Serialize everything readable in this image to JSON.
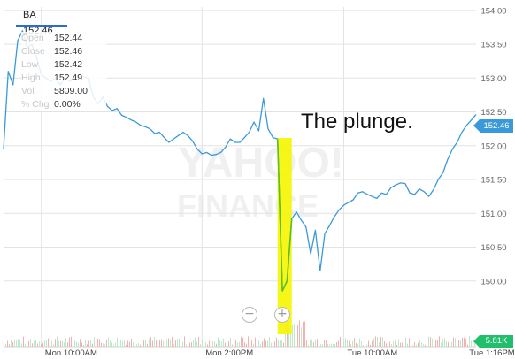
{
  "ticker": {
    "label": "BA 152.46"
  },
  "stats": [
    {
      "key": "Open",
      "value": "152.44"
    },
    {
      "key": "Close",
      "value": "152.46"
    },
    {
      "key": "Low",
      "value": "152.42"
    },
    {
      "key": "High",
      "value": "152.49"
    },
    {
      "key": "Vol",
      "value": "5809.00"
    },
    {
      "key": "% Chg",
      "value": "0.00%"
    }
  ],
  "price_tag": "152.46",
  "volume_tag": "5.81K",
  "annotation": "The plunge.",
  "watermark": {
    "line1": "YAHOO!",
    "line2": "FINANCE"
  },
  "zoom": {
    "out_icon": "−",
    "in_icon": "+"
  },
  "colors": {
    "line": "#3a9ad9",
    "highlight": "#f5f500",
    "highlight_line": "#5cbf2a",
    "grid": "#e3e3e3",
    "volume_red": "#f3b1b1",
    "volume_green": "#bfe8c9",
    "price_tag": "#3a9ad9",
    "volume_tag": "#1fbf6b"
  },
  "chart_data": {
    "type": "line",
    "title": "BA",
    "ylim": [
      149.5,
      154.05
    ],
    "yticks": [
      "154.00",
      "153.50",
      "153.00",
      "152.50",
      "152.00",
      "151.50",
      "151.00",
      "150.50",
      "150.00"
    ],
    "xticks": [
      "Mon 10:00AM",
      "Mon 2:00PM",
      "Tue 10:00AM",
      "Tue 1:16PM"
    ],
    "x_index_range": [
      0,
      100
    ],
    "xtick_positions": [
      8,
      42,
      72,
      100
    ],
    "x": [
      0,
      1,
      2,
      3,
      4,
      5,
      6,
      7,
      8,
      9,
      10,
      11,
      12,
      13,
      14,
      15,
      16,
      17,
      18,
      19,
      20,
      21,
      22,
      23,
      24,
      25,
      26,
      27,
      28,
      29,
      30,
      31,
      32,
      33,
      34,
      35,
      36,
      37,
      38,
      39,
      40,
      41,
      42,
      43,
      44,
      45,
      46,
      47,
      48,
      49,
      50,
      51,
      52,
      53,
      54,
      55,
      56,
      57,
      58,
      59,
      60,
      61,
      62,
      63,
      64,
      65,
      66,
      67,
      68,
      69,
      70,
      71,
      72,
      73,
      74,
      75,
      76,
      77,
      78,
      79,
      80,
      81,
      82,
      83,
      84,
      85,
      86,
      87,
      88,
      89,
      90,
      91,
      92,
      93,
      94,
      95,
      96,
      97,
      98,
      99,
      100
    ],
    "y": [
      151.95,
      153.1,
      152.9,
      153.55,
      153.7,
      153.45,
      153.5,
      153.3,
      153.05,
      153.0,
      152.95,
      153.0,
      152.9,
      153.0,
      152.95,
      153.0,
      153.05,
      153.02,
      153.0,
      152.72,
      152.62,
      152.72,
      152.58,
      152.52,
      152.55,
      152.45,
      152.42,
      152.38,
      152.35,
      152.3,
      152.28,
      152.25,
      152.18,
      152.2,
      152.12,
      152.05,
      152.1,
      152.15,
      152.2,
      152.15,
      152.07,
      151.95,
      151.88,
      151.9,
      151.86,
      151.87,
      151.9,
      151.98,
      152.1,
      152.05,
      152.05,
      152.12,
      152.2,
      152.35,
      152.22,
      152.7,
      152.25,
      152.12,
      152.1,
      149.85,
      150.0,
      150.92,
      151.02,
      150.9,
      150.8,
      150.4,
      150.75,
      150.15,
      150.7,
      150.82,
      150.95,
      151.05,
      151.12,
      151.16,
      151.2,
      151.3,
      151.32,
      151.28,
      151.25,
      151.22,
      151.3,
      151.28,
      151.38,
      151.42,
      151.45,
      151.44,
      151.3,
      151.28,
      151.36,
      151.32,
      151.25,
      151.35,
      151.5,
      151.6,
      151.8,
      151.95,
      152.05,
      152.2,
      152.3,
      152.38,
      152.46
    ],
    "highlight_x_range": [
      58,
      61
    ],
    "last_value": 152.46,
    "legend": [],
    "grid": true
  }
}
